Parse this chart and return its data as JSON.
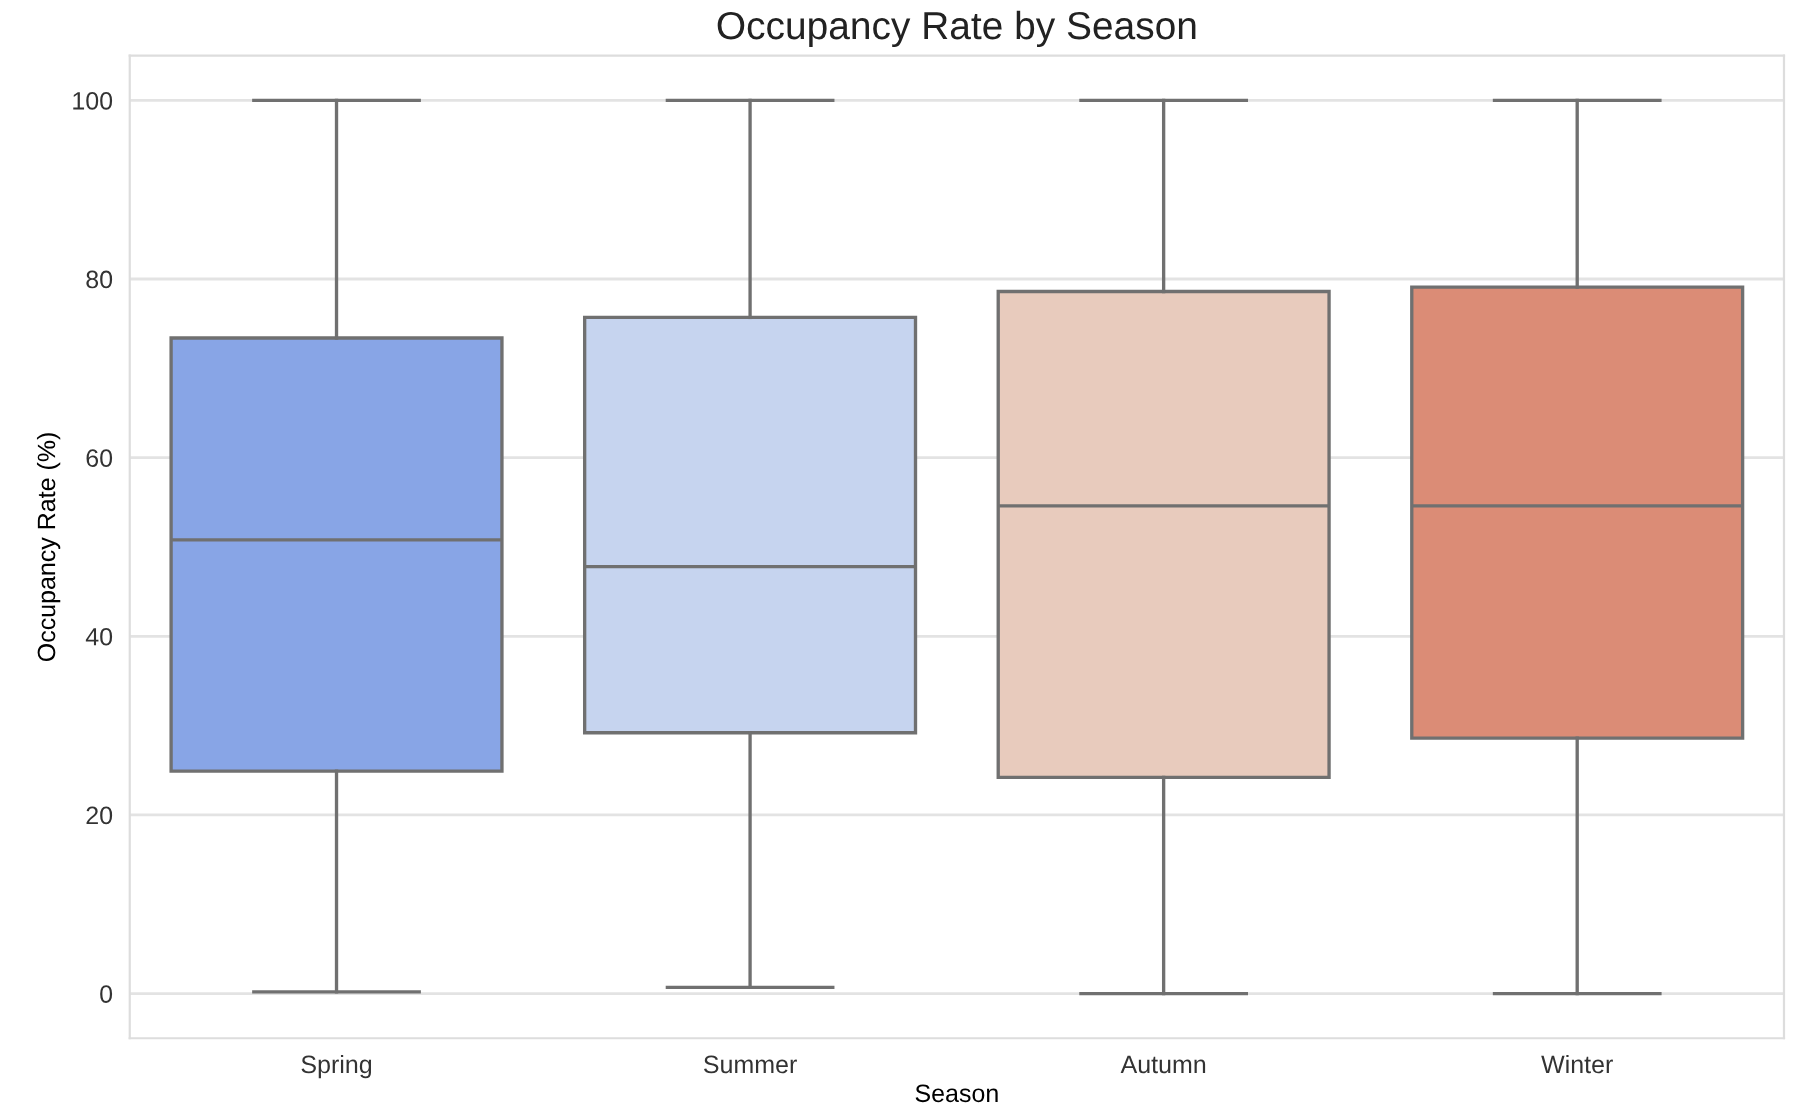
{
  "chart_data": {
    "type": "box",
    "title": "Occupancy Rate by Season",
    "xlabel": "Season",
    "ylabel": "Occupancy Rate (%)",
    "categories": [
      "Spring",
      "Summer",
      "Autumn",
      "Winter"
    ],
    "colors": [
      "#88a5e6",
      "#c6d4ef",
      "#e8cbbd",
      "#db8c76"
    ],
    "boxes": [
      {
        "low": 0.2,
        "q1": 24.9,
        "median": 50.8,
        "q3": 73.4,
        "high": 100
      },
      {
        "low": 0.7,
        "q1": 29.2,
        "median": 47.8,
        "q3": 75.7,
        "high": 100
      },
      {
        "low": 0,
        "q1": 24.2,
        "median": 54.6,
        "q3": 78.6,
        "high": 100
      },
      {
        "low": 0,
        "q1": 28.6,
        "median": 54.6,
        "q3": 79.1,
        "high": 100
      }
    ],
    "ylim": [
      -5,
      105
    ],
    "yticks": [
      0,
      20,
      40,
      60,
      80,
      100
    ],
    "grid": "y"
  }
}
